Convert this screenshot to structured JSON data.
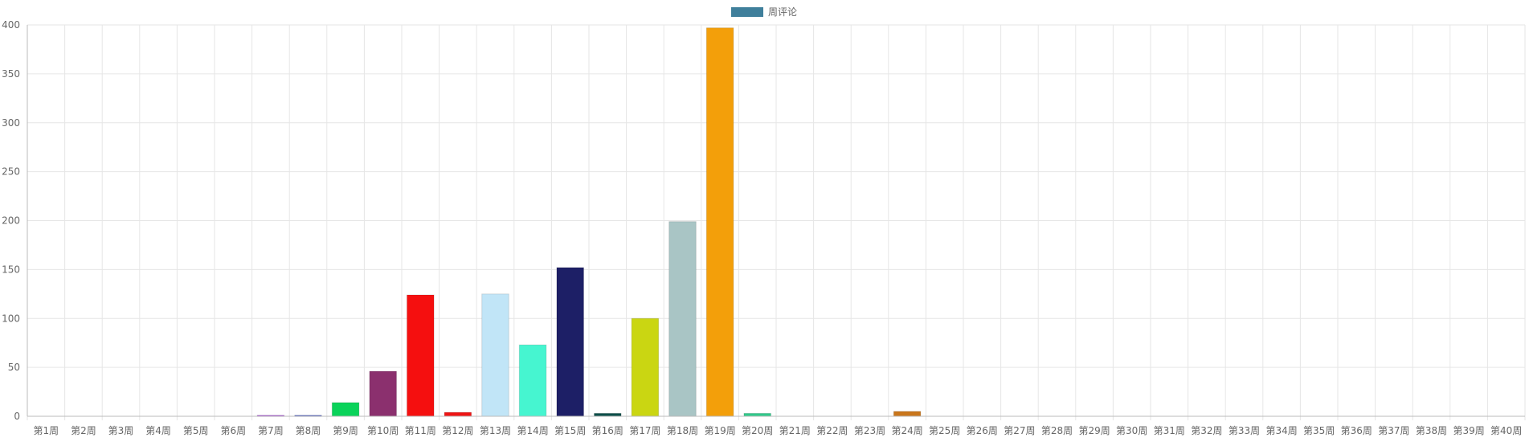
{
  "chart_data": {
    "type": "bar",
    "legend": {
      "label": "周评论",
      "color": "#3f7f9b",
      "position": "top-center"
    },
    "ylim": [
      0,
      400
    ],
    "yticks": [
      0,
      50,
      100,
      150,
      200,
      250,
      300,
      350,
      400
    ],
    "grid": true,
    "categories": [
      "第1周",
      "第2周",
      "第3周",
      "第4周",
      "第5周",
      "第6周",
      "第7周",
      "第8周",
      "第9周",
      "第10周",
      "第11周",
      "第12周",
      "第13周",
      "第14周",
      "第15周",
      "第16周",
      "第17周",
      "第18周",
      "第19周",
      "第20周",
      "第21周",
      "第22周",
      "第23周",
      "第24周",
      "第25周",
      "第26周",
      "第27周",
      "第28周",
      "第29周",
      "第30周",
      "第31周",
      "第32周",
      "第33周",
      "第34周",
      "第35周",
      "第36周",
      "第37周",
      "第38周",
      "第39周",
      "第40周"
    ],
    "series": [
      {
        "name": "周评论",
        "values": [
          0,
          0,
          0,
          0,
          0,
          0,
          1,
          1,
          14,
          46,
          124,
          4,
          125,
          73,
          152,
          3,
          100,
          199,
          397,
          3,
          0,
          0,
          0,
          5,
          0,
          0,
          0,
          0,
          0,
          0,
          0,
          0,
          0,
          0,
          0,
          0,
          0,
          0,
          0,
          0
        ],
        "colors": [
          "#cccccc",
          "#cccccc",
          "#cccccc",
          "#cccccc",
          "#cccccc",
          "#cccccc",
          "#9b2ad9",
          "#2a3fc4",
          "#0ad35a",
          "#8b306e",
          "#f50f0f",
          "#ee1313",
          "#c1e5f7",
          "#46f5d0",
          "#1d1f66",
          "#0d4f4a",
          "#cad612",
          "#a9c5c5",
          "#f39f0a",
          "#30c98a",
          "#cccccc",
          "#cccccc",
          "#cccccc",
          "#c9761c",
          "#cccccc",
          "#cccccc",
          "#cccccc",
          "#cccccc",
          "#cccccc",
          "#cccccc",
          "#cccccc",
          "#cccccc",
          "#cccccc",
          "#cccccc",
          "#cccccc",
          "#cccccc",
          "#cccccc",
          "#cccccc",
          "#cccccc",
          "#cccccc"
        ]
      }
    ]
  }
}
